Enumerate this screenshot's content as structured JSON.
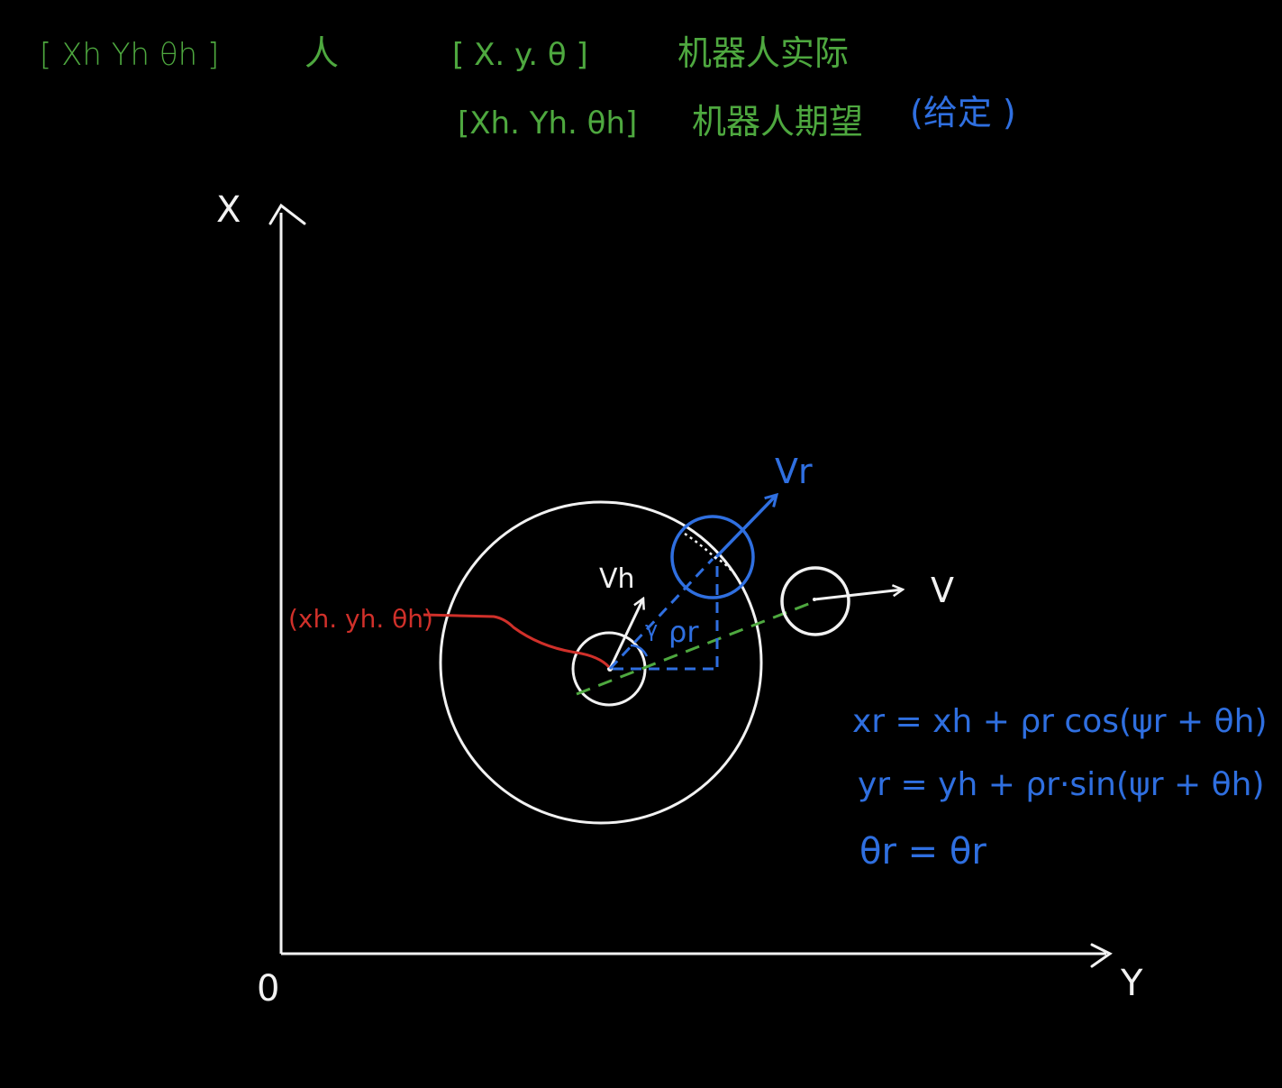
{
  "colors": {
    "background": "#000000",
    "white": "#f2f2f2",
    "green": "#4ea83f",
    "blue": "#2f6fe0",
    "red": "#d0302a"
  },
  "header": {
    "human_state": {
      "vector": "[ Xh  Yh  θh ]",
      "label": "人"
    },
    "robot_actual": {
      "vector": "[ X.  y.  θ ]",
      "label": "机器人实际"
    },
    "robot_desired": {
      "vector": "[Xh. Yh. θh]",
      "label": "机器人期望",
      "note": "(给定 )"
    }
  },
  "axes": {
    "x_label": "X",
    "y_label": "Y",
    "origin_label": "0"
  },
  "diagram": {
    "human_point_label": "(xh. yh. θh)",
    "human_velocity_label": "Vh",
    "robot_velocity_label": "Vr",
    "actual_velocity_label": "V",
    "distance_label": "ρr",
    "angle_label": "γ"
  },
  "equations": [
    "xr = xh + ρr cos(ψr + θh)",
    "yr = yh + ρr·sin(ψr + θh)",
    "θr = θr"
  ]
}
